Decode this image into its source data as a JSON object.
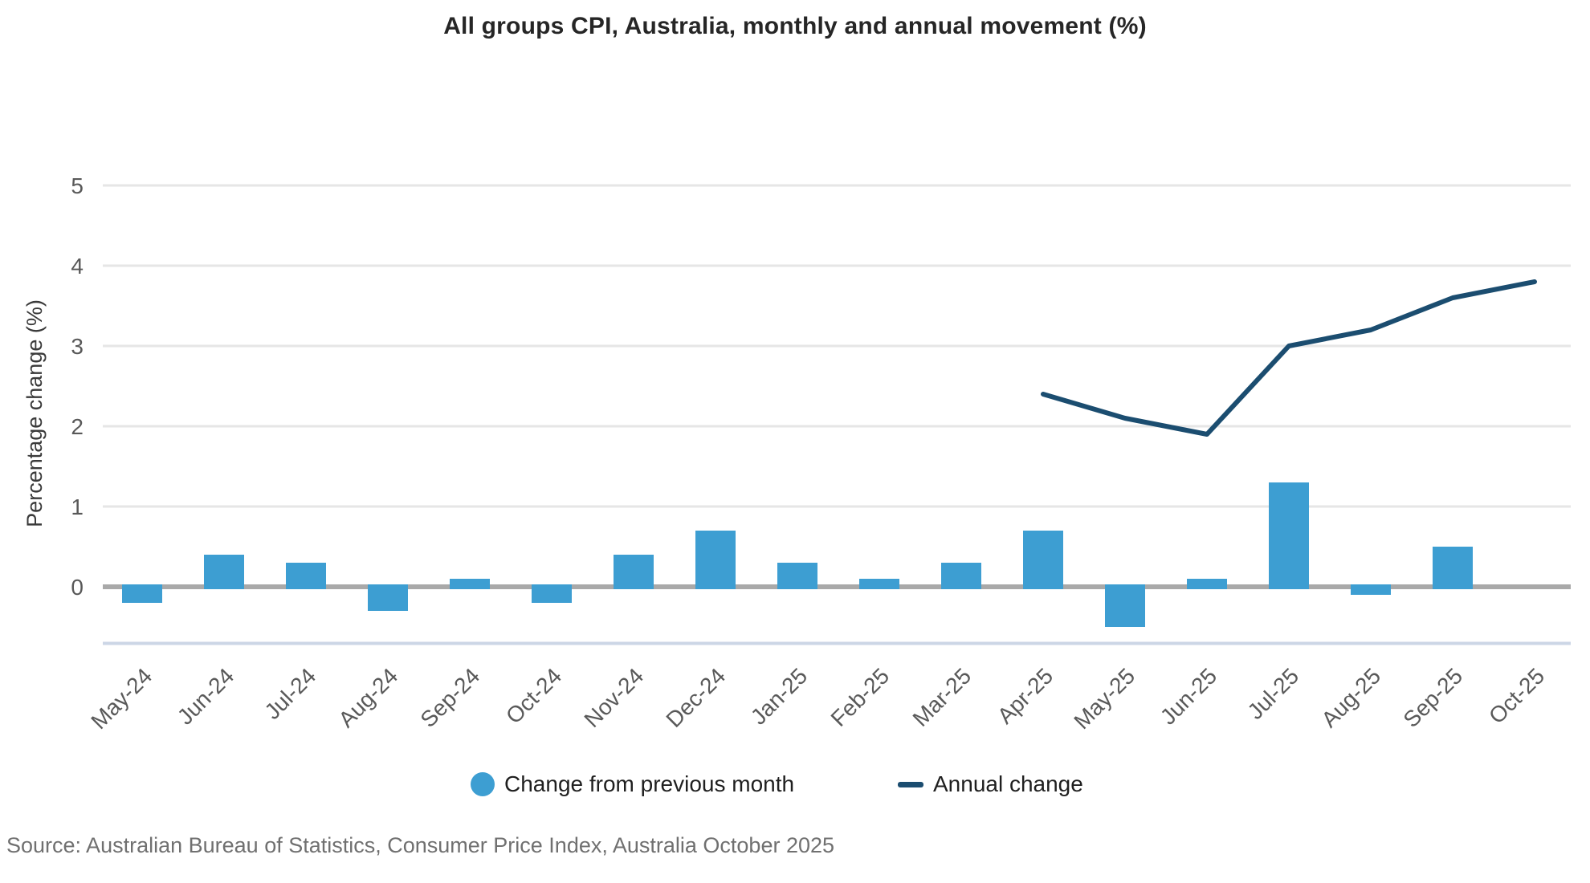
{
  "title": "All groups CPI, Australia, monthly and annual movement (%)",
  "source_note": "Source: Australian Bureau of Statistics, Consumer Price Index, Australia October 2025",
  "y_axis": {
    "label": "Percentage change (%)",
    "ticks": [
      0,
      1,
      2,
      3,
      4,
      5
    ]
  },
  "legend": {
    "position": "bottom",
    "items": [
      {
        "label": "Change from previous month",
        "swatch": "circle-icon",
        "color": "#3d9ed2"
      },
      {
        "label": "Annual change",
        "swatch": "line-icon",
        "color": "#1b4d70"
      }
    ]
  },
  "colors": {
    "bar": "#3d9ed2",
    "line": "#1b4d70",
    "gridline": "#e6e6e6",
    "zero_line": "#a9a9a9",
    "axis_bottom_line": "#ccd6e6",
    "tick_text": "#595959",
    "title_text": "#262626",
    "source_text": "#707070"
  },
  "chart_data": {
    "type": "bar",
    "title": "All groups CPI, Australia, monthly and annual movement (%)",
    "xlabel": "",
    "ylabel": "Percentage change (%)",
    "ylim": [
      -0.75,
      5.5
    ],
    "grid": true,
    "legend_position": "bottom",
    "categories": [
      "May-24",
      "Jun-24",
      "Jul-24",
      "Aug-24",
      "Sep-24",
      "Oct-24",
      "Nov-24",
      "Dec-24",
      "Jan-25",
      "Feb-25",
      "Mar-25",
      "Apr-25",
      "May-25",
      "Jun-25",
      "Jul-25",
      "Aug-25",
      "Sep-25",
      "Oct-25"
    ],
    "series": [
      {
        "name": "Change from previous month",
        "type": "bar",
        "color": "#3d9ed2",
        "values": [
          -0.2,
          0.4,
          0.3,
          -0.3,
          0.1,
          -0.2,
          0.4,
          0.7,
          0.3,
          0.1,
          0.3,
          0.7,
          -0.5,
          0.1,
          1.3,
          -0.1,
          0.5,
          0.0
        ]
      },
      {
        "name": "Annual change",
        "type": "line",
        "color": "#1b4d70",
        "values": [
          null,
          null,
          null,
          null,
          null,
          null,
          null,
          null,
          null,
          null,
          null,
          2.4,
          2.1,
          1.9,
          3.0,
          3.2,
          3.6,
          3.8
        ]
      }
    ]
  }
}
